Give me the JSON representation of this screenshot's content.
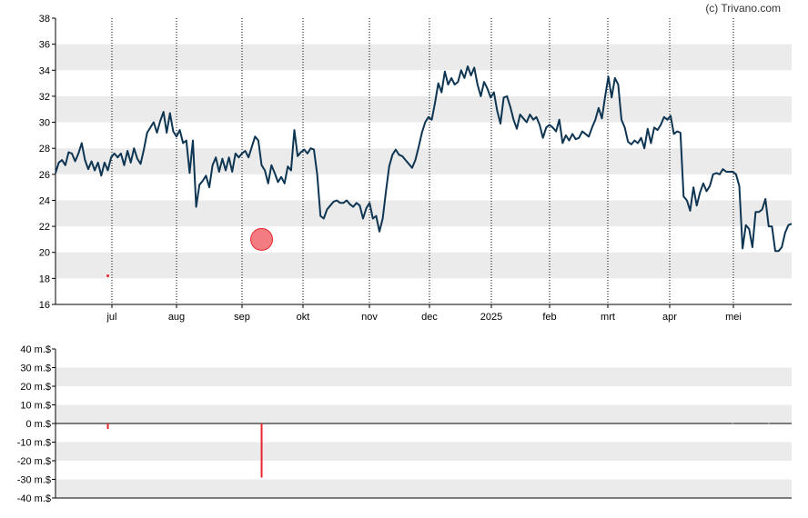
{
  "copyright": "(c) Trivano.com",
  "colors": {
    "price_line": "#0e3552",
    "band": "#ebebeb",
    "marker": "#e8262e",
    "volume_bar": "#e8262e",
    "grid_vertical": "#000000"
  },
  "chart_data": [
    {
      "type": "line",
      "x_tick_labels": [
        "jul",
        "aug",
        "sep",
        "okt",
        "nov",
        "dec",
        "2025",
        "feb",
        "mrt",
        "apr",
        "mei"
      ],
      "y_tick_labels": [
        "16",
        "18",
        "20",
        "22",
        "24",
        "26",
        "28",
        "30",
        "32",
        "34",
        "36",
        "38"
      ],
      "ylim": [
        16,
        38
      ],
      "grid": "alternating horizontal bands, dotted vertical month lines",
      "series": [
        {
          "values": [
            26.1,
            26.9,
            27.1,
            26.7,
            27.7,
            27.6,
            27.0,
            27.6,
            28.4,
            27.1,
            26.4,
            27.0,
            26.3,
            26.9,
            25.9,
            26.9,
            26.3,
            27.3,
            27.6,
            27.3,
            27.6,
            26.7,
            27.8,
            26.9,
            28.0,
            27.2,
            26.8,
            27.9,
            29.2,
            29.6,
            30.0,
            29.2,
            30.1,
            30.8,
            29.2,
            30.7,
            29.3,
            28.9,
            29.4,
            28.4,
            28.6,
            26.1,
            28.6,
            23.5,
            25.2,
            25.5,
            25.9,
            25.0,
            26.7,
            27.3,
            26.2,
            27.2,
            26.3,
            27.3,
            26.2,
            27.6,
            27.3,
            27.6,
            27.8,
            27.3,
            28.1,
            28.9,
            28.6,
            26.7,
            26.3,
            25.3,
            26.7,
            26.1,
            25.4,
            25.8,
            25.3,
            26.6,
            26.3,
            29.4,
            27.4,
            27.7,
            27.9,
            27.6,
            28.0,
            27.9,
            26.0,
            22.8,
            22.6,
            23.3,
            23.6,
            23.9,
            24.0,
            23.8,
            23.8,
            24.0,
            23.7,
            23.5,
            23.8,
            23.6,
            22.6,
            23.4,
            23.8,
            22.6,
            22.8,
            21.6,
            22.6,
            24.7,
            26.6,
            27.5,
            27.9,
            27.5,
            27.4,
            27.1,
            26.8,
            26.5,
            27.1,
            28.1,
            29.2,
            30.0,
            30.4,
            30.2,
            31.5,
            33.0,
            32.3,
            33.9,
            32.9,
            33.4,
            32.9,
            33.1,
            34.0,
            33.4,
            34.3,
            33.6,
            34.2,
            32.9,
            32.0,
            33.1,
            32.6,
            31.9,
            32.3,
            30.9,
            29.9,
            31.9,
            32.0,
            31.2,
            30.2,
            29.5,
            30.6,
            30.3,
            30.0,
            30.6,
            30.2,
            30.4,
            29.8,
            28.8,
            29.6,
            29.8,
            29.6,
            29.3,
            30.2,
            28.4,
            29.0,
            28.6,
            29.1,
            28.7,
            28.8,
            29.3,
            29.1,
            28.9,
            29.6,
            30.2,
            31.1,
            30.3,
            32.0,
            33.5,
            31.9,
            33.4,
            32.9,
            30.2,
            29.6,
            28.5,
            28.3,
            28.6,
            28.4,
            28.8,
            28.0,
            29.5,
            28.4,
            29.6,
            29.4,
            29.8,
            30.4,
            30.2,
            30.5,
            29.1,
            29.3,
            29.2,
            24.3,
            24.0,
            23.2,
            25.0,
            23.6,
            24.6,
            25.3,
            24.7,
            25.1,
            26.0,
            26.1,
            26.0,
            26.4,
            26.2,
            26.2,
            26.2,
            26.0,
            25.1,
            20.3,
            22.1,
            21.8,
            20.4,
            23.1,
            23.1,
            23.3,
            24.1,
            22.0,
            22.0,
            20.1,
            20.1,
            20.4,
            21.5,
            22.1,
            22.2
          ]
        }
      ],
      "markers": [
        {
          "type": "small-dot",
          "x_index": 16,
          "y": 18.2
        },
        {
          "type": "large-circle",
          "x_index": 63,
          "y": 21.0
        }
      ]
    },
    {
      "type": "bar",
      "x_tick_labels": [
        "jul",
        "aug",
        "sep",
        "okt",
        "nov",
        "dec",
        "2025",
        "feb",
        "mrt",
        "apr",
        "mei"
      ],
      "y_tick_labels": [
        "40 m.$",
        "30 m.$",
        "20 m.$",
        "10 m.$",
        "0 m.$",
        "-10 m.$",
        "-20 m.$",
        "-30 m.$",
        "-40 m.$"
      ],
      "ylim": [
        -40,
        40
      ],
      "bars": [
        {
          "x_index": 16,
          "value": -3
        },
        {
          "x_index": 63,
          "value": -29
        },
        {
          "x_index": 207,
          "value": 0.3
        },
        {
          "x_index": 218,
          "value": 0.3
        }
      ]
    }
  ]
}
